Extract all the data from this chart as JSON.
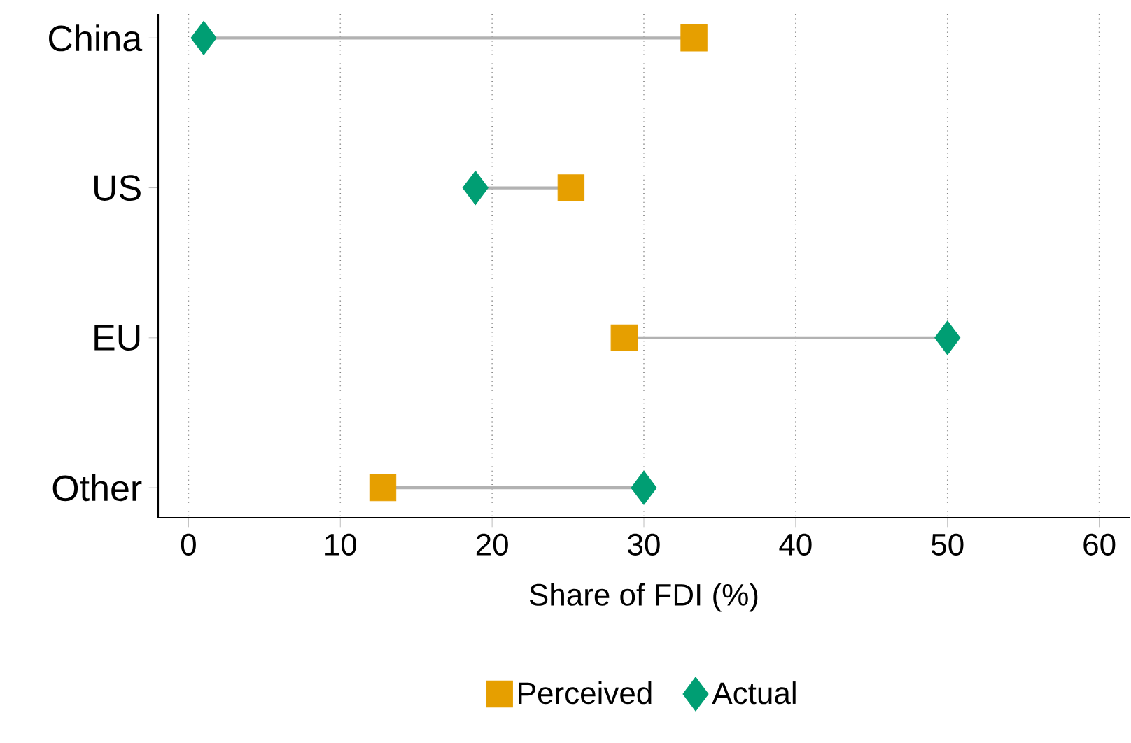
{
  "chart_data": {
    "type": "scatter",
    "orientation": "horizontal",
    "xlabel": "Share of FDI (%)",
    "categories": [
      "China",
      "US",
      "EU",
      "Other"
    ],
    "series": [
      {
        "name": "Perceived",
        "color": "#e69f00",
        "marker": "square",
        "values": [
          33.3,
          25.2,
          28.7,
          12.8
        ]
      },
      {
        "name": "Actual",
        "color": "#009e73",
        "marker": "diamond",
        "values": [
          1.0,
          18.9,
          50.0,
          30.0
        ]
      }
    ],
    "xlim": [
      -2,
      62
    ],
    "xticks": [
      0,
      10,
      20,
      30,
      40,
      50,
      60
    ],
    "grid": "x",
    "legend": "bottom"
  }
}
